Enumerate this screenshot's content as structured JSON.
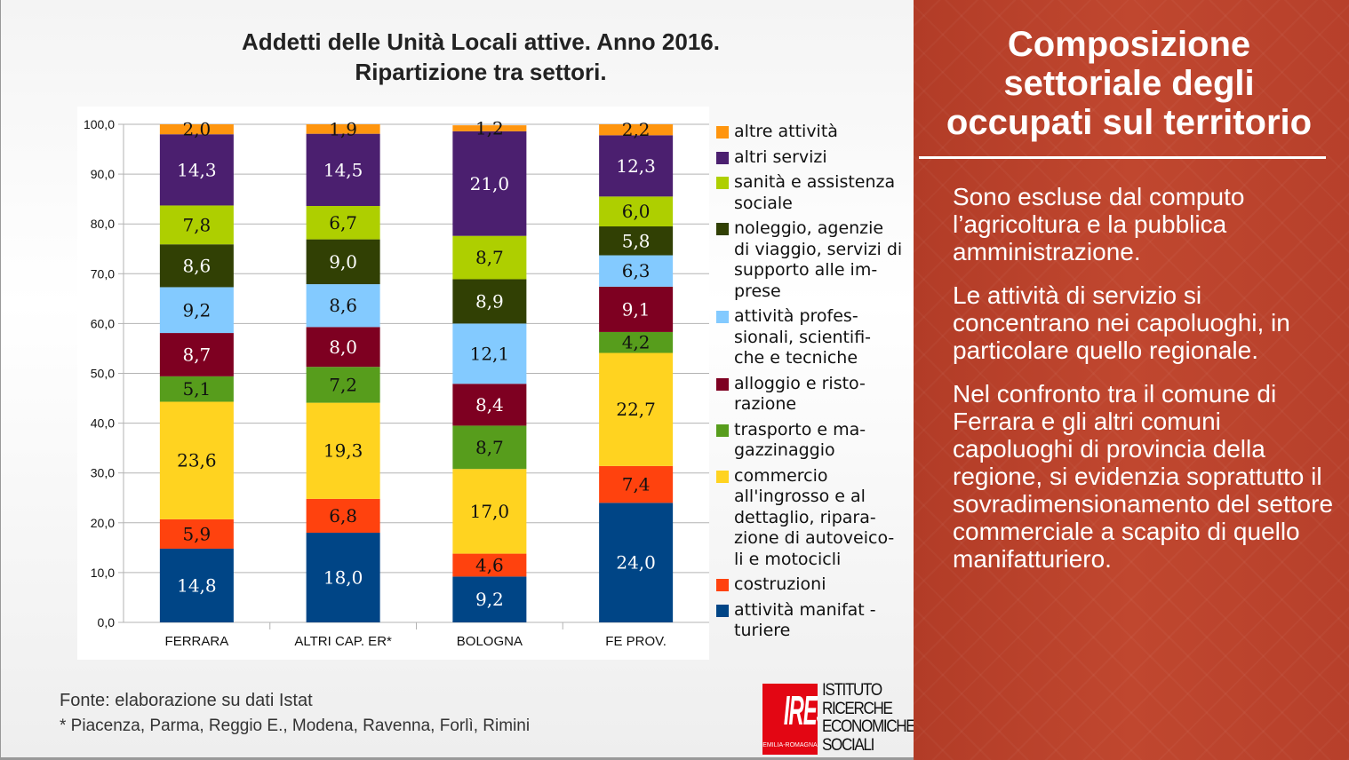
{
  "chart_data": {
    "type": "bar",
    "stacked": true,
    "title": [
      "Addetti delle Unità Locali attive. Anno 2016.",
      "Ripartizione tra settori."
    ],
    "categories": [
      "FERRARA",
      "ALTRI CAP. ER*",
      "BOLOGNA",
      "FE PROV."
    ],
    "ylim": [
      0,
      100
    ],
    "yticks": [
      "0,0",
      "10,0",
      "20,0",
      "30,0",
      "40,0",
      "50,0",
      "60,0",
      "70,0",
      "80,0",
      "90,0",
      "100,0"
    ],
    "legend_position": "right",
    "series": [
      {
        "name": "attività manifat - turiere",
        "color": "#004586",
        "text": "#fff",
        "values": [
          14.8,
          18.0,
          9.2,
          24.0
        ],
        "labels": [
          "14,8",
          "18,0",
          "9,2",
          "24,0"
        ],
        "legend_lines": [
          "attività manifat -",
          "turiere"
        ]
      },
      {
        "name": "costruzioni",
        "color": "#ff420e",
        "text": "#111",
        "values": [
          5.9,
          6.8,
          4.6,
          7.4
        ],
        "labels": [
          "5,9",
          "6,8",
          "4,6",
          "7,4"
        ],
        "legend_lines": [
          "costruzioni"
        ]
      },
      {
        "name": "commercio all'ingrosso e al dettaglio, riparazione di autoveicoli e motocicli",
        "color": "#ffd320",
        "text": "#111",
        "values": [
          23.6,
          19.3,
          17.0,
          22.7
        ],
        "labels": [
          "23,6",
          "19,3",
          "17,0",
          "22,7"
        ],
        "legend_lines": [
          "commercio",
          "all'ingrosso e al",
          "dettaglio, ripara-",
          "zione di autoveico-",
          "li e motocicli"
        ]
      },
      {
        "name": "trasporto e magazzinaggio",
        "color": "#579d1c",
        "text": "#111",
        "values": [
          5.1,
          7.2,
          8.7,
          4.2
        ],
        "labels": [
          "5,1",
          "7,2",
          "8,7",
          "4,2"
        ],
        "legend_lines": [
          "trasporto e ma-",
          "gazzinaggio"
        ]
      },
      {
        "name": "alloggio e ristorazione",
        "color": "#7e0021",
        "text": "#fff",
        "values": [
          8.7,
          8.0,
          8.4,
          9.1
        ],
        "labels": [
          "8,7",
          "8,0",
          "8,4",
          "9,1"
        ],
        "legend_lines": [
          "alloggio e risto-",
          "razione"
        ]
      },
      {
        "name": "attività professionali, scientifiche e tecniche",
        "color": "#83caff",
        "text": "#111",
        "values": [
          9.2,
          8.6,
          12.1,
          6.3
        ],
        "labels": [
          "9,2",
          "8,6",
          "12,1",
          "6,3"
        ],
        "legend_lines": [
          "attività profes-",
          "sionali, scientifi-",
          "che e tecniche"
        ]
      },
      {
        "name": "noleggio, agenzie di viaggio, servizi di supporto alle imprese",
        "color": "#314004",
        "text": "#fff",
        "values": [
          8.6,
          9.0,
          8.9,
          5.8
        ],
        "labels": [
          "8,6",
          "9,0",
          "8,9",
          "5,8"
        ],
        "legend_lines": [
          "noleggio, agenzie",
          "di viaggio, servizi di",
          "supporto alle im-",
          "prese"
        ]
      },
      {
        "name": "sanità e assistenza sociale",
        "color": "#aecf00",
        "text": "#111",
        "values": [
          7.8,
          6.7,
          8.7,
          6.0
        ],
        "labels": [
          "7,8",
          "6,7",
          "8,7",
          "6,0"
        ],
        "legend_lines": [
          "sanità e assistenza",
          "sociale"
        ]
      },
      {
        "name": "altri servizi",
        "color": "#4b1f6f",
        "text": "#fff",
        "values": [
          14.3,
          14.5,
          21.0,
          12.3
        ],
        "labels": [
          "14,3",
          "14,5",
          "21,0",
          "12,3"
        ],
        "legend_lines": [
          "altri servizi"
        ]
      },
      {
        "name": "altre attività",
        "color": "#ff950e",
        "text": "#111",
        "values": [
          2.0,
          1.9,
          1.2,
          2.2
        ],
        "labels": [
          "2,0",
          "1,9",
          "1,2",
          "2,2"
        ],
        "legend_lines": [
          "altre attività"
        ]
      }
    ]
  },
  "footer": {
    "source": "Fonte: elaborazione su dati Istat",
    "note": "* Piacenza, Parma, Reggio E., Modena, Ravenna, Forlì, Rimini"
  },
  "logo": {
    "mark": "IRES",
    "region": "EMILIA-ROMAGNA",
    "lines": [
      "ISTITUTO",
      "RICERCHE",
      "ECONOMICHE",
      "SOCIALI"
    ]
  },
  "side": {
    "title": "Composizione settoriale degli occupati sul territorio",
    "paragraphs": [
      "Sono escluse dal computo l’agricoltura e la pubblica amministrazione.",
      "Le attività di servizio si concentrano nei capoluoghi, in particolare quello regionale.",
      "Nel confronto tra il comune di Ferrara e gli altri comuni capoluoghi di provincia della regione, si evidenzia soprattutto il sovradimensionamento del settore commerciale a scapito di quello manifatturiero."
    ]
  },
  "colors": {
    "panel": "#b9422c"
  }
}
